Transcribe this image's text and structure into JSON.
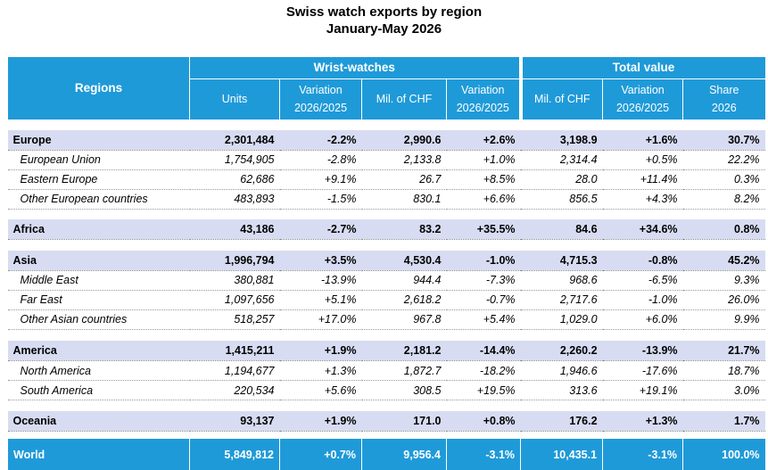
{
  "header": {
    "title": "Swiss watch exports by region",
    "subtitle": "January-May 2026"
  },
  "table": {
    "regions_label": "Regions",
    "group_labels": [
      "Wrist-watches",
      "Total value"
    ],
    "columns": [
      [
        "Units"
      ],
      [
        "Variation",
        "2026/2025"
      ],
      [
        "Mil. of CHF"
      ],
      [
        "Variation",
        "2026/2025"
      ],
      [
        "Mil. of CHF"
      ],
      [
        "Variation",
        "2026/2025"
      ],
      [
        "Share",
        "2026"
      ]
    ],
    "groups": [
      [
        [
          "Europe",
          "2,301,484",
          "-2.2%",
          "2,990.6",
          "+2.6%",
          "3,198.9",
          "+1.6%",
          "30.7%"
        ],
        [
          "European Union",
          "1,754,905",
          "-2.8%",
          "2,133.8",
          "+1.0%",
          "2,314.4",
          "+0.5%",
          "22.2%"
        ],
        [
          "Eastern Europe",
          "62,686",
          "+9.1%",
          "26.7",
          "+8.5%",
          "28.0",
          "+11.4%",
          "0.3%"
        ],
        [
          "Other European countries",
          "483,893",
          "-1.5%",
          "830.1",
          "+6.6%",
          "856.5",
          "+4.3%",
          "8.2%"
        ]
      ],
      [
        [
          "Africa",
          "43,186",
          "-2.7%",
          "83.2",
          "+35.5%",
          "84.6",
          "+34.6%",
          "0.8%"
        ]
      ],
      [
        [
          "Asia",
          "1,996,794",
          "+3.5%",
          "4,530.4",
          "-1.0%",
          "4,715.3",
          "-0.8%",
          "45.2%"
        ],
        [
          "Middle East",
          "380,881",
          "-13.9%",
          "944.4",
          "-7.3%",
          "968.6",
          "-6.5%",
          "9.3%"
        ],
        [
          "Far East",
          "1,097,656",
          "+5.1%",
          "2,618.2",
          "-0.7%",
          "2,717.6",
          "-1.0%",
          "26.0%"
        ],
        [
          "Other Asian countries",
          "518,257",
          "+17.0%",
          "967.8",
          "+5.4%",
          "1,029.0",
          "+6.0%",
          "9.9%"
        ]
      ],
      [
        [
          "America",
          "1,415,211",
          "+1.9%",
          "2,181.2",
          "-14.4%",
          "2,260.2",
          "-13.9%",
          "21.7%"
        ],
        [
          "North America",
          "1,194,677",
          "+1.3%",
          "1,872.7",
          "-18.2%",
          "1,946.6",
          "-17.6%",
          "18.7%"
        ],
        [
          "South America",
          "220,534",
          "+5.6%",
          "308.5",
          "+19.5%",
          "313.6",
          "+19.1%",
          "3.0%"
        ]
      ],
      [
        [
          "Oceania",
          "93,137",
          "+1.9%",
          "171.0",
          "+0.8%",
          "176.2",
          "+1.3%",
          "1.7%"
        ]
      ]
    ],
    "total": [
      "World",
      "5,849,812",
      "+0.7%",
      "9,956.4",
      "-3.1%",
      "10,435.1",
      "-3.1%",
      "100.0%"
    ]
  }
}
